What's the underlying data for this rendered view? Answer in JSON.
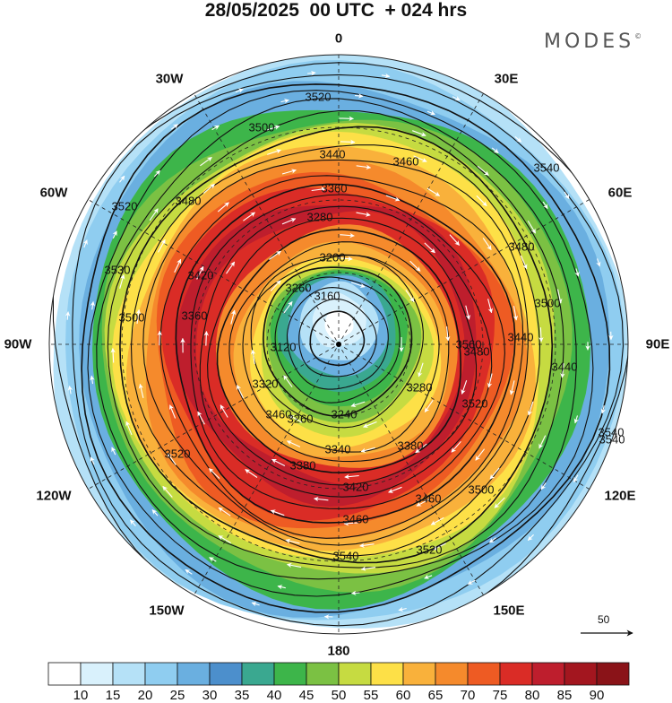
{
  "title": "28/05/2025  00 UTC  + 024 hrs",
  "brand": "MODES",
  "brand_mark": "©",
  "longitude_labels": {
    "0": "0",
    "30E": "30E",
    "60E": "60E",
    "90E": "90E",
    "120E": "120E",
    "150E": "150E",
    "180": "180",
    "150W": "150W",
    "120W": "120W",
    "90W": "90W",
    "60W": "60W",
    "30W": "30W"
  },
  "chart_data": {
    "type": "heatmap",
    "projection": "south polar stereographic",
    "contour_labels": [
      "3520",
      "3500",
      "3440",
      "3480",
      "3460",
      "3360",
      "3280",
      "3540",
      "3520",
      "3530",
      "3420",
      "3480",
      "3200",
      "3160",
      "3260",
      "3500",
      "3360",
      "3440",
      "3480",
      "3500",
      "3120",
      "3440",
      "3560",
      "3320",
      "3240",
      "3280",
      "3460",
      "3520",
      "3260",
      "3540",
      "3520",
      "3340",
      "3380",
      "3420",
      "3380",
      "3460",
      "3500",
      "3540",
      "3460",
      "3520",
      "3540"
    ],
    "colorbar": {
      "ticks": [
        "10",
        "15",
        "20",
        "25",
        "30",
        "35",
        "40",
        "45",
        "50",
        "55",
        "60",
        "65",
        "70",
        "75",
        "80",
        "85",
        "90"
      ],
      "colors": [
        "#ffffff",
        "#d9f1fc",
        "#b5e1f7",
        "#8fcdf0",
        "#6aafe0",
        "#4c8fcc",
        "#3aa890",
        "#3db54a",
        "#7bc143",
        "#c6db41",
        "#fde047",
        "#f9b13b",
        "#f58a2c",
        "#ee5b23",
        "#da2c26",
        "#be1e2d",
        "#a3161f",
        "#8a1318"
      ]
    },
    "vector_reference": "50"
  }
}
